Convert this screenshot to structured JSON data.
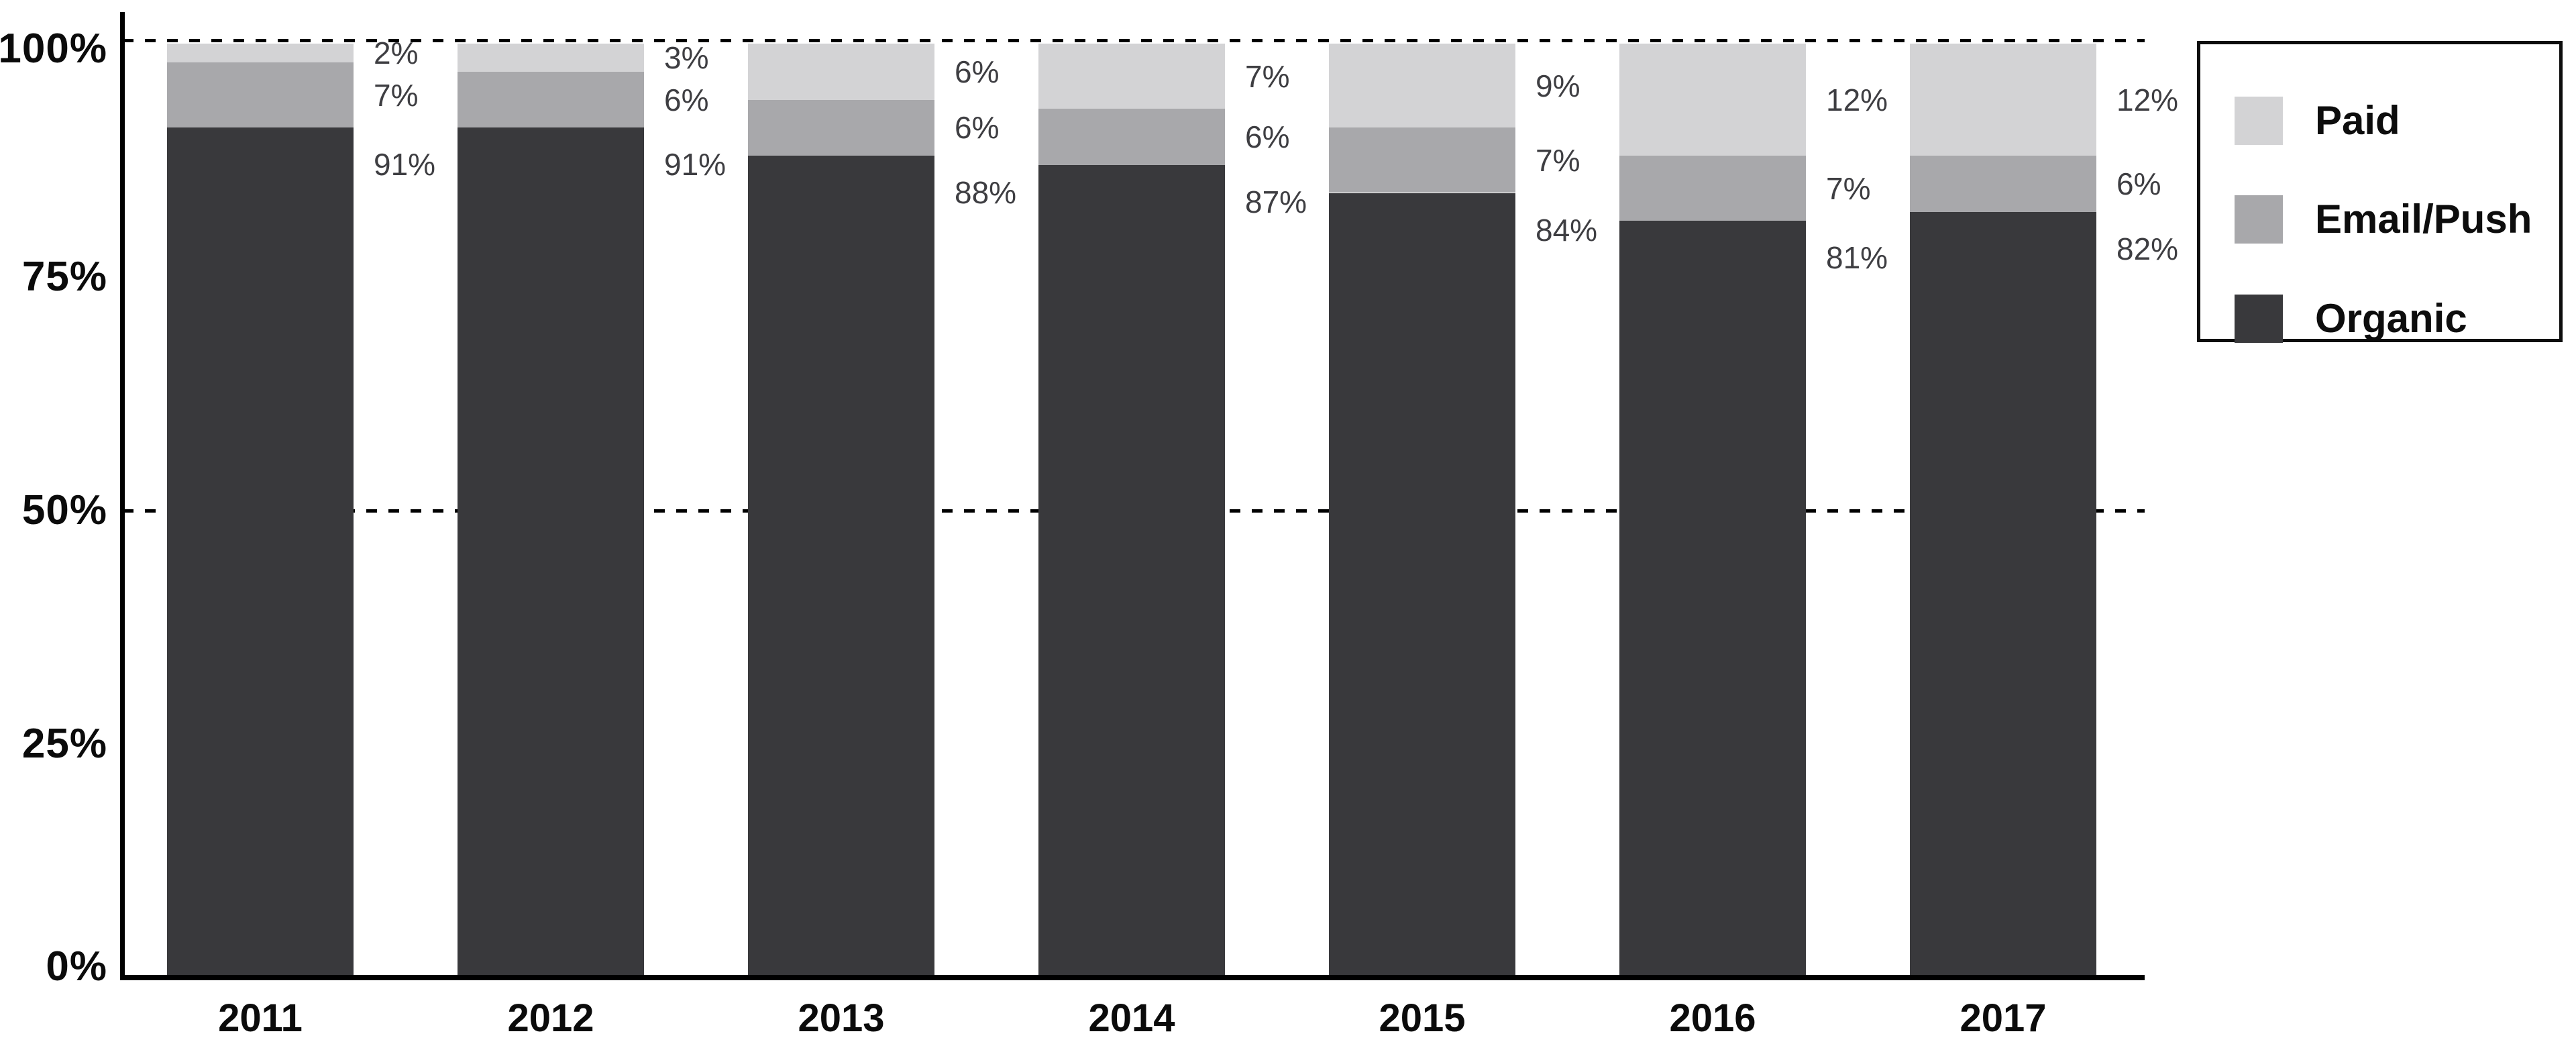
{
  "chart_data": {
    "type": "bar",
    "stacked": true,
    "title": "",
    "xlabel": "",
    "ylabel": "",
    "categories": [
      "2011",
      "2012",
      "2013",
      "2014",
      "2015",
      "2016",
      "2017"
    ],
    "series": [
      {
        "name": "Paid",
        "color": "#d3d3d5",
        "values": [
          2,
          3,
          6,
          7,
          9,
          12,
          12
        ]
      },
      {
        "name": "Email/Push",
        "color": "#a8a8ab",
        "values": [
          7,
          6,
          6,
          6,
          7,
          7,
          6
        ]
      },
      {
        "name": "Organic",
        "color": "#39393c",
        "values": [
          91,
          91,
          88,
          87,
          84,
          81,
          82
        ]
      }
    ],
    "value_suffix": "%",
    "data_labels": true,
    "y_axis": {
      "tick_labels": [
        "100%",
        "75%",
        "50%",
        "25%",
        "0%"
      ],
      "tick_values": [
        100,
        75,
        50,
        25,
        0
      ],
      "range": [
        0,
        100
      ]
    },
    "dashed_gridlines": [
      100,
      50
    ],
    "grid": "horizontal dashed at 50% and 100%",
    "legend": {
      "position": "top-right",
      "entries": [
        "Paid",
        "Email/Push",
        "Organic"
      ]
    }
  },
  "colors": {
    "background": "#ffffff",
    "axis": "#000000",
    "tick_text": "#0b0b0b",
    "data_label_text": "#3e3e42",
    "legend_border": "#0d0d0d",
    "paid": "#d3d3d5",
    "email_push": "#a8a8ab",
    "organic": "#39393c"
  }
}
